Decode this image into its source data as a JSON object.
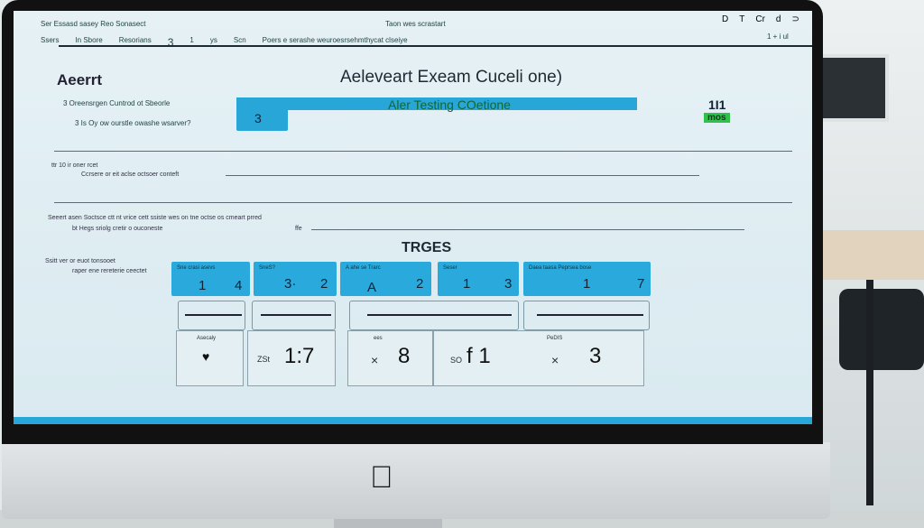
{
  "toolbar": {
    "title_left": "Ser Essasd sasey Reo  Sonasect",
    "title_center": "Taon wes scrastart",
    "items": [
      "Ssers",
      "In Sbore",
      "Resorians",
      "3",
      "1",
      "ys",
      "Scn"
    ],
    "path": "Poers e serashe weuroesrsehmthycat clseiye",
    "right_icons": [
      "D",
      "T",
      "Cr",
      "d",
      "⊃"
    ],
    "right_sub": "1 + i ul"
  },
  "sidebar": {
    "title": "Aeerrt",
    "items": [
      "3  Oreensrgen Cuntrod ot Sbeorle",
      "3  Is Oy ow ourstle owashe wsarver?"
    ]
  },
  "main": {
    "title": "Aeleveart Exeam Cuceli one)",
    "banner": "Aler Testing COetione",
    "banner_number": "3",
    "score": "1I1",
    "badge": "mos"
  },
  "questions": [
    "ttr 10 ir oner rcet",
    "Ccrsere or eit aclse octsoer conteft",
    "Seeert asen Soctsce ctt  nt vrice cett ssiste wes on tne octse os cmeart prred",
    "bt Hegs  sriolg cretir o ouconeste",
    "ffe",
    "Ssitt ver or  euot tonsooet",
    "raper ene rereterie ceectet"
  ],
  "section": {
    "title": "TRGES",
    "cells": [
      {
        "header": "Sne crasi asevs",
        "a": "1",
        "b": "4"
      },
      {
        "header": "SneS?",
        "a": "3·",
        "b": "2"
      },
      {
        "header": "A ahe se Trarc",
        "a": "A",
        "b": "2"
      },
      {
        "header": "Seser",
        "a": "1",
        "b": "3"
      },
      {
        "header": "Daea taasa Peprsea bose",
        "a": "1",
        "b": "7"
      }
    ],
    "results": [
      {
        "label": "Asecaly",
        "value": "♥"
      },
      {
        "label": "",
        "prefix": "ZSt",
        "value": "1:7"
      },
      {
        "label": "ees",
        "prefix": "×",
        "value": "8"
      },
      {
        "label": "",
        "prefix": "SO",
        "value": "f 1"
      },
      {
        "label": "PeDIS",
        "prefix": "×",
        "value": "3"
      }
    ]
  },
  "colors": {
    "accent": "#29a6d8",
    "badge": "#2ec24a",
    "screen": "#dfeef3"
  }
}
